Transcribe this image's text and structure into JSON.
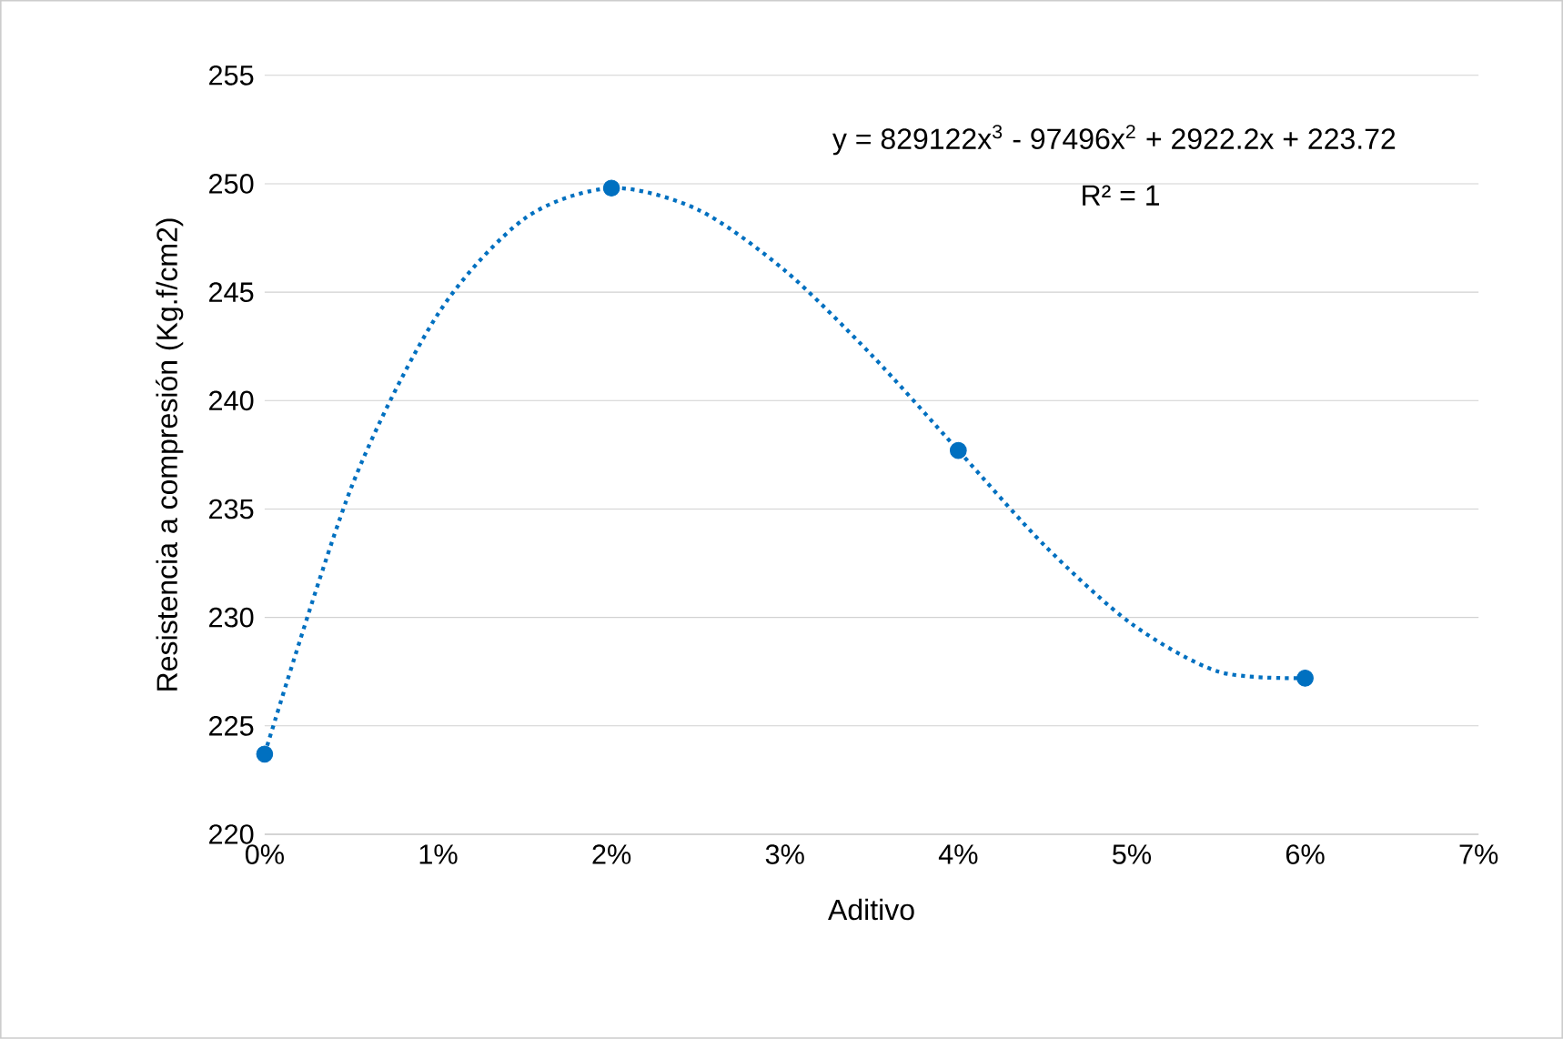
{
  "chart_data": {
    "type": "scatter",
    "xlabel": "Aditivo",
    "ylabel": "Resistencia a compresión (Kg.f/cm2)",
    "series": [
      {
        "color": "#0070c0",
        "marker": "circle",
        "x": [
          0,
          0.02,
          0.04,
          0.06
        ],
        "values": [
          223.7,
          249.8,
          237.7,
          227.2
        ]
      },
      {
        "type": "line",
        "color": "#0070c0",
        "line_style": "dotted",
        "marker": "none",
        "x": [
          0,
          0.005,
          0.01,
          0.015,
          0.02,
          0.025,
          0.03,
          0.035,
          0.04,
          0.045,
          0.05,
          0.055,
          0.06
        ],
        "values": [
          223.7,
          236.0,
          244.0,
          248.4,
          249.8,
          248.8,
          246.0,
          242.1,
          237.7,
          233.3,
          229.7,
          227.5,
          227.2
        ]
      }
    ],
    "xlim": [
      0,
      0.07
    ],
    "xticks": [
      {
        "value": 0,
        "label": "0%"
      },
      {
        "value": 0.01,
        "label": "1%"
      },
      {
        "value": 0.02,
        "label": "2%"
      },
      {
        "value": 0.03,
        "label": "3%"
      },
      {
        "value": 0.04,
        "label": "4%"
      },
      {
        "value": 0.05,
        "label": "5%"
      },
      {
        "value": 0.06,
        "label": "6%"
      },
      {
        "value": 0.07,
        "label": "7%"
      }
    ],
    "ylim": [
      220,
      255
    ],
    "yticks": [
      220,
      225,
      230,
      235,
      240,
      245,
      250,
      255
    ],
    "grid": "y",
    "annotations": [
      "y = 829122x$^{3}$ - 97496x$^{2}$ + 2922.2x + 223.72",
      "R² = 1"
    ]
  }
}
